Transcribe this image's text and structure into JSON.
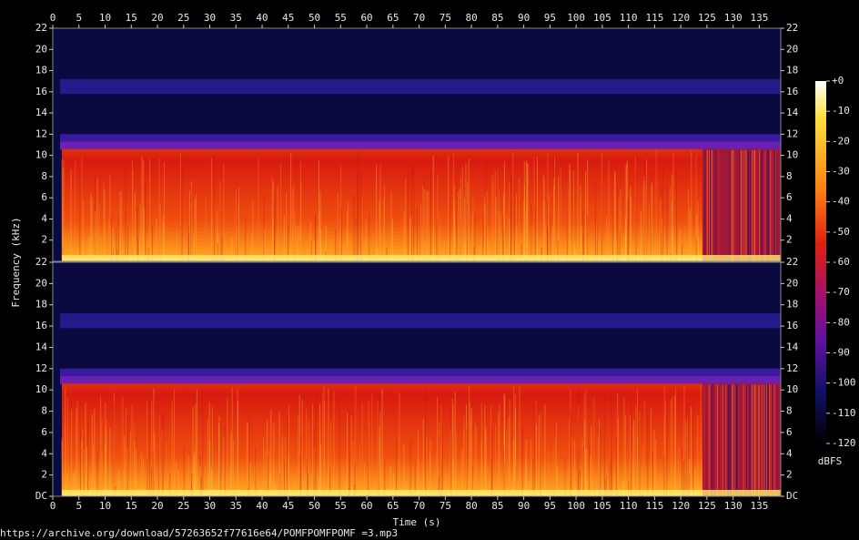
{
  "chart_data": [
    {
      "type": "spectrogram",
      "ylabel": "Frequency (kHz)",
      "xlim": [
        0,
        139.1
      ],
      "xticks": [
        0,
        5,
        10,
        15,
        20,
        25,
        30,
        35,
        40,
        45,
        50,
        55,
        60,
        65,
        70,
        75,
        80,
        85,
        90,
        95,
        100,
        105,
        110,
        115,
        120,
        125,
        130,
        135
      ],
      "ylim": [
        0,
        22
      ],
      "yticks": [
        2,
        4,
        6,
        8,
        10,
        12,
        14,
        16,
        18,
        20,
        22
      ]
    },
    {
      "type": "spectrogram",
      "xlabel": "Time (s)",
      "xlim": [
        0,
        139.1
      ],
      "xticks": [
        0,
        5,
        10,
        15,
        20,
        25,
        30,
        35,
        40,
        45,
        50,
        55,
        60,
        65,
        70,
        75,
        80,
        85,
        90,
        95,
        100,
        105,
        110,
        115,
        120,
        125,
        130,
        135
      ],
      "ylim": [
        0,
        22
      ],
      "yticks": [
        {
          "value": 0,
          "label": "DC"
        },
        2,
        4,
        6,
        8,
        10,
        12,
        14,
        16,
        18,
        20,
        22
      ]
    }
  ],
  "colorbar": {
    "label": "dBFS",
    "lim": [
      -120,
      0
    ],
    "ticks": [
      {
        "value": 0,
        "label": "+0"
      },
      -10,
      -20,
      -30,
      -40,
      -50,
      -60,
      -70,
      -80,
      -90,
      -100,
      -110,
      -120
    ]
  },
  "source": "https://archive.org/download/57263652f77616e64/POMFPOMFPOMF =3.mp3"
}
